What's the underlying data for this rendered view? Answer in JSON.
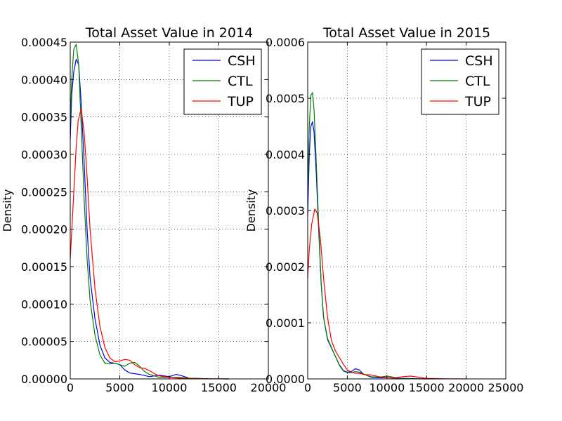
{
  "chart_data": [
    {
      "type": "line",
      "title": "Total Asset Value in 2014",
      "xlabel": "",
      "ylabel": "Density",
      "xlim": [
        0,
        20000
      ],
      "ylim": [
        0,
        0.00045
      ],
      "xticks": [
        "0",
        "5000",
        "10000",
        "15000",
        "20000"
      ],
      "yticks": [
        "0.00000",
        "0.00005",
        "0.00010",
        "0.00015",
        "0.00020",
        "0.00025",
        "0.00030",
        "0.00035",
        "0.00040",
        "0.00045"
      ],
      "grid": true,
      "legend_position": "top-right",
      "series": [
        {
          "name": "CSH",
          "color": "#0000ff",
          "points": [
            [
              0,
              0.00032
            ],
            [
              150,
              0.00038
            ],
            [
              350,
              0.00041
            ],
            [
              600,
              0.000427
            ],
            [
              850,
              0.00042
            ],
            [
              1100,
              0.00037
            ],
            [
              1400,
              0.00029
            ],
            [
              1700,
              0.0002
            ],
            [
              2000,
              0.000135
            ],
            [
              2500,
              8e-05
            ],
            [
              3000,
              4.5e-05
            ],
            [
              3500,
              2.8e-05
            ],
            [
              4000,
              2.2e-05
            ],
            [
              4500,
              2.1e-05
            ],
            [
              5000,
              1.9e-05
            ],
            [
              5500,
              1.2e-05
            ],
            [
              6000,
              8e-06
            ],
            [
              7000,
              6e-06
            ],
            [
              8000,
              3e-06
            ],
            [
              9000,
              5e-06
            ],
            [
              10000,
              3e-06
            ],
            [
              10700,
              6e-06
            ],
            [
              11300,
              4e-06
            ],
            [
              12000,
              1e-06
            ],
            [
              14000,
              2e-07
            ],
            [
              16000,
              0
            ]
          ]
        },
        {
          "name": "CTL",
          "color": "#008000",
          "points": [
            [
              0,
              0.00034
            ],
            [
              150,
              0.0004
            ],
            [
              350,
              0.00044
            ],
            [
              600,
              0.000447
            ],
            [
              850,
              0.00042
            ],
            [
              1100,
              0.00034
            ],
            [
              1400,
              0.00024
            ],
            [
              1700,
              0.00016
            ],
            [
              2000,
              0.000105
            ],
            [
              2500,
              5.8e-05
            ],
            [
              3000,
              3.2e-05
            ],
            [
              3500,
              2.1e-05
            ],
            [
              4000,
              2e-05
            ],
            [
              4500,
              2.1e-05
            ],
            [
              5000,
              1.9e-05
            ],
            [
              5500,
              1.7e-05
            ],
            [
              6000,
              2.1e-05
            ],
            [
              6500,
              2.2e-05
            ],
            [
              7000,
              1.7e-05
            ],
            [
              7500,
              1e-05
            ],
            [
              8000,
              6e-06
            ],
            [
              9000,
              2e-06
            ],
            [
              10000,
              2e-06
            ],
            [
              11000,
              2e-06
            ],
            [
              12000,
              1e-06
            ],
            [
              14000,
              2e-07
            ],
            [
              16000,
              0
            ]
          ]
        },
        {
          "name": "TUP",
          "color": "#ff0000",
          "points": [
            [
              0,
              0.00016
            ],
            [
              200,
              0.00021
            ],
            [
              400,
              0.00026
            ],
            [
              600,
              0.00031
            ],
            [
              800,
              0.000345
            ],
            [
              1100,
              0.000361
            ],
            [
              1400,
              0.00033
            ],
            [
              1700,
              0.00027
            ],
            [
              2000,
              0.0002
            ],
            [
              2500,
              0.00012
            ],
            [
              3000,
              7e-05
            ],
            [
              3500,
              4.2e-05
            ],
            [
              4000,
              2.8e-05
            ],
            [
              4500,
              2.3e-05
            ],
            [
              5000,
              2.4e-05
            ],
            [
              5500,
              2.6e-05
            ],
            [
              6000,
              2.5e-05
            ],
            [
              6500,
              1.9e-05
            ],
            [
              7000,
              1.5e-05
            ],
            [
              7500,
              1.4e-05
            ],
            [
              8000,
              1.1e-05
            ],
            [
              8500,
              7e-06
            ],
            [
              9000,
              4e-06
            ],
            [
              10000,
              2e-06
            ],
            [
              11000,
              1e-06
            ],
            [
              12000,
              5e-07
            ],
            [
              14000,
              2e-07
            ],
            [
              16000,
              0
            ]
          ]
        }
      ]
    },
    {
      "type": "line",
      "title": "Total Asset Value in 2015",
      "xlabel": "",
      "ylabel": "Density",
      "xlim": [
        0,
        25000
      ],
      "ylim": [
        0,
        0.0006
      ],
      "xticks": [
        "0",
        "5000",
        "10000",
        "15000",
        "20000",
        "25000"
      ],
      "yticks": [
        "0.0000",
        "0.0001",
        "0.0002",
        "0.0003",
        "0.0004",
        "0.0005",
        "0.0006"
      ],
      "grid": true,
      "legend_position": "top-right",
      "series": [
        {
          "name": "CSH",
          "color": "#0000ff",
          "points": [
            [
              0,
              0.00029
            ],
            [
              200,
              0.0004
            ],
            [
              400,
              0.00045
            ],
            [
              600,
              0.000458
            ],
            [
              800,
              0.00044
            ],
            [
              1100,
              0.00036
            ],
            [
              1400,
              0.00026
            ],
            [
              1700,
              0.00017
            ],
            [
              2000,
              0.00011
            ],
            [
              2500,
              7e-05
            ],
            [
              3000,
              5.5e-05
            ],
            [
              3500,
              4e-05
            ],
            [
              4000,
              2.5e-05
            ],
            [
              4500,
              1.5e-05
            ],
            [
              5000,
              1.2e-05
            ],
            [
              5500,
              1.3e-05
            ],
            [
              6000,
              1.8e-05
            ],
            [
              6500,
              1.6e-05
            ],
            [
              7000,
              9e-06
            ],
            [
              8000,
              3e-06
            ],
            [
              9000,
              2e-06
            ],
            [
              10000,
              2e-06
            ],
            [
              12000,
              1e-06
            ],
            [
              14000,
              2e-07
            ],
            [
              16000,
              0
            ]
          ]
        },
        {
          "name": "CTL",
          "color": "#008000",
          "points": [
            [
              0,
              0.00033
            ],
            [
              200,
              0.00045
            ],
            [
              400,
              0.000505
            ],
            [
              600,
              0.00051
            ],
            [
              800,
              0.00048
            ],
            [
              1100,
              0.00038
            ],
            [
              1400,
              0.00027
            ],
            [
              1700,
              0.00017
            ],
            [
              2000,
              0.00011
            ],
            [
              2500,
              7.2e-05
            ],
            [
              3000,
              5.6e-05
            ],
            [
              3500,
              4e-05
            ],
            [
              4000,
              2.4e-05
            ],
            [
              4500,
              1.4e-05
            ],
            [
              5000,
              1.1e-05
            ],
            [
              5500,
              1.1e-05
            ],
            [
              6000,
              1.3e-05
            ],
            [
              6500,
              1.2e-05
            ],
            [
              7000,
              9e-06
            ],
            [
              7500,
              6e-06
            ],
            [
              8000,
              4e-06
            ],
            [
              9000,
              3e-06
            ],
            [
              10000,
              5e-06
            ],
            [
              10500,
              4e-06
            ],
            [
              11500,
              1e-06
            ],
            [
              13000,
              3e-07
            ],
            [
              15000,
              0
            ]
          ]
        },
        {
          "name": "TUP",
          "color": "#ff0000",
          "points": [
            [
              0,
              0.00018
            ],
            [
              200,
              0.00023
            ],
            [
              500,
              0.000275
            ],
            [
              900,
              0.000303
            ],
            [
              1200,
              0.000295
            ],
            [
              1600,
              0.00025
            ],
            [
              2000,
              0.00018
            ],
            [
              2500,
              0.00011
            ],
            [
              3000,
              6.8e-05
            ],
            [
              3500,
              5e-05
            ],
            [
              4000,
              3.8e-05
            ],
            [
              4500,
              2.6e-05
            ],
            [
              5000,
              1.6e-05
            ],
            [
              5500,
              1.2e-05
            ],
            [
              6000,
              1e-05
            ],
            [
              6500,
              1e-05
            ],
            [
              7000,
              8e-06
            ],
            [
              8000,
              7e-06
            ],
            [
              9000,
              4e-06
            ],
            [
              10000,
              2e-06
            ],
            [
              11000,
              2e-06
            ],
            [
              12000,
              4e-06
            ],
            [
              13000,
              5e-06
            ],
            [
              14000,
              3e-06
            ],
            [
              15000,
              1e-06
            ],
            [
              17000,
              3e-07
            ],
            [
              20000,
              0
            ]
          ]
        }
      ]
    }
  ]
}
